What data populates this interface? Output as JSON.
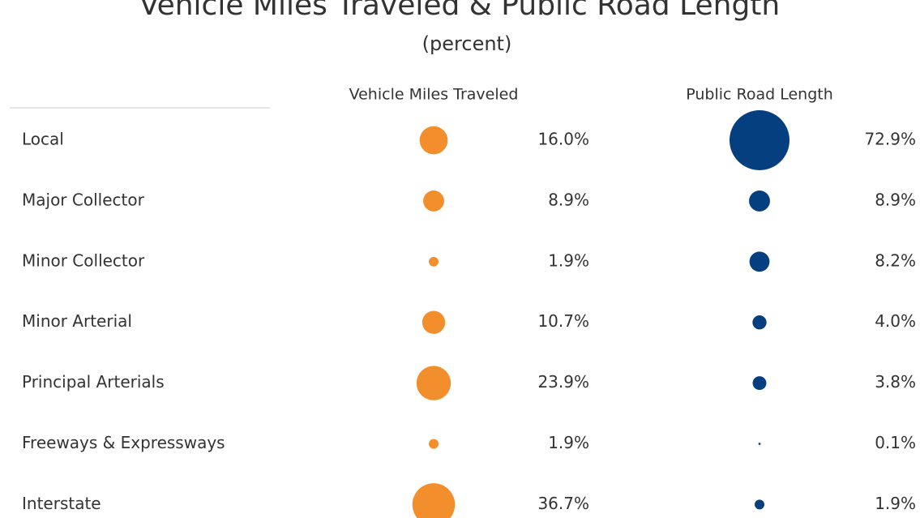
{
  "chart_data": {
    "type": "bubble",
    "title": "Vehicle Miles Traveled & Public Road Length",
    "subtitle": "(percent)",
    "categories": [
      "Local",
      "Major Collector",
      "Minor Collector",
      "Minor Arterial",
      "Principal Arterials",
      "Freeways & Expressways",
      "Interstate"
    ],
    "series": [
      {
        "name": "Vehicle Miles Traveled",
        "color": "#f28e2b",
        "values": [
          16.0,
          8.9,
          1.9,
          10.7,
          23.9,
          1.9,
          36.7
        ],
        "value_labels": [
          "16.0%",
          "8.9%",
          "1.9%",
          "10.7%",
          "23.9%",
          "1.9%",
          "36.7%"
        ]
      },
      {
        "name": "Public Road Length",
        "color": "#063f7f",
        "values": [
          72.9,
          8.9,
          8.2,
          4.0,
          3.8,
          0.1,
          1.9
        ],
        "value_labels": [
          "72.9%",
          "8.9%",
          "8.2%",
          "4.0%",
          "3.8%",
          "0.1%",
          "1.9%"
        ]
      }
    ]
  }
}
